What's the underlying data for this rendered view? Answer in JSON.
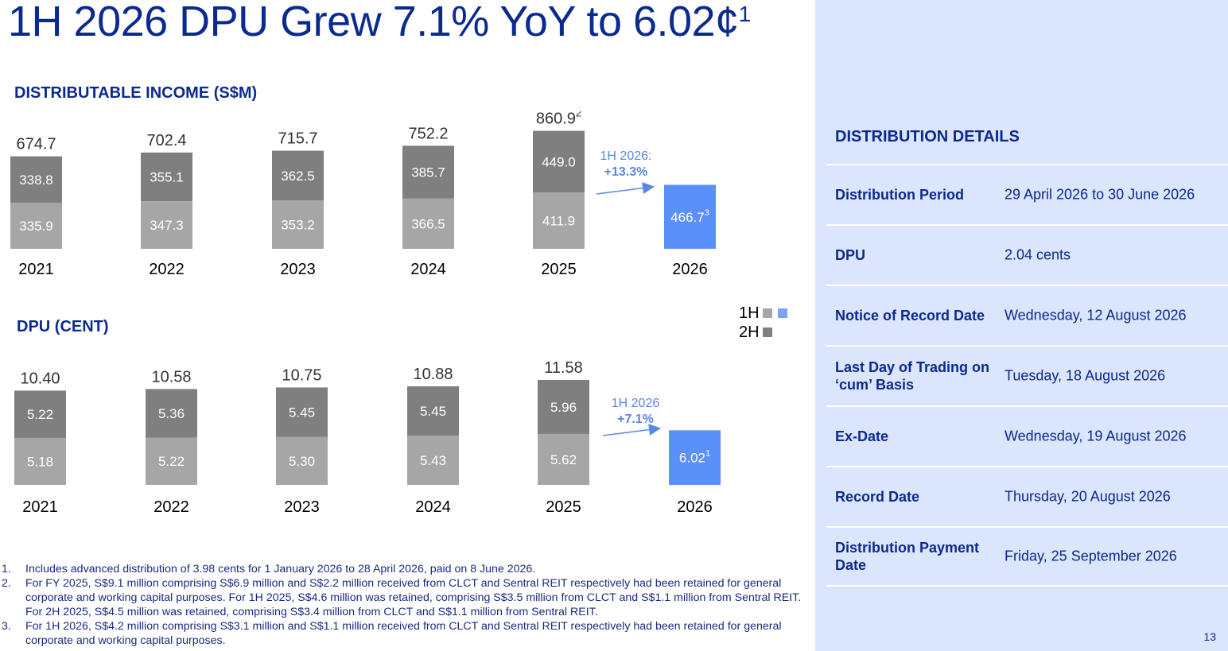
{
  "title": {
    "text": "1H 2026 DPU Grew 7.1% YoY to 6.02¢",
    "footnote_marker": "1"
  },
  "legend": {
    "first_half": "1H",
    "second_half": "2H"
  },
  "chart_data": [
    {
      "type": "bar",
      "title": "DISTRIBUTABLE INCOME (S$M)",
      "categories": [
        "2021",
        "2022",
        "2023",
        "2024",
        "2025",
        "2026"
      ],
      "series": [
        {
          "name": "1H",
          "values": [
            335.9,
            347.3,
            353.2,
            366.5,
            411.9,
            466.7
          ]
        },
        {
          "name": "2H",
          "values": [
            338.8,
            355.1,
            362.5,
            385.7,
            449.0,
            null
          ]
        }
      ],
      "value_labels_1h": [
        "335.9",
        "347.3",
        "353.2",
        "366.5",
        "411.9",
        "466.7"
      ],
      "value_labels_2h": [
        "338.8",
        "355.1",
        "362.5",
        "385.7",
        "449.0",
        ""
      ],
      "totals": [
        674.7,
        702.4,
        715.7,
        752.2,
        860.9
      ],
      "total_labels": [
        "674.7",
        "702.4",
        "715.7",
        "752.2",
        "860.9"
      ],
      "total_superscripts": [
        "",
        "",
        "",
        "",
        "2"
      ],
      "value_superscripts_1h": [
        "",
        "",
        "",
        "",
        "",
        "3"
      ],
      "annotation": {
        "label": "1H 2026:",
        "value": "+13.3%"
      },
      "colors": {
        "1H": "#a6a6a6",
        "2H": "#7f7f7f",
        "1H_2026": "#5b8ff9"
      }
    },
    {
      "type": "bar",
      "title": "DPU (CENT)",
      "categories": [
        "2021",
        "2022",
        "2023",
        "2024",
        "2025",
        "2026"
      ],
      "series": [
        {
          "name": "1H",
          "values": [
            5.18,
            5.22,
            5.3,
            5.43,
            5.62,
            6.02
          ]
        },
        {
          "name": "2H",
          "values": [
            5.22,
            5.36,
            5.45,
            5.45,
            5.96,
            null
          ]
        }
      ],
      "value_labels_1h": [
        "5.18",
        "5.22",
        "5.30",
        "5.43",
        "5.62",
        "6.02"
      ],
      "value_labels_2h": [
        "5.22",
        "5.36",
        "5.45",
        "5.45",
        "5.96",
        ""
      ],
      "totals": [
        10.4,
        10.58,
        10.75,
        10.88,
        11.58
      ],
      "total_labels": [
        "10.40",
        "10.58",
        "10.75",
        "10.88",
        "11.58"
      ],
      "total_superscripts": [
        "",
        "",
        "",
        "",
        ""
      ],
      "value_superscripts_1h": [
        "",
        "",
        "",
        "",
        "",
        "1"
      ],
      "annotation": {
        "label": "1H 2026",
        "value": "+7.1%"
      },
      "colors": {
        "1H": "#a6a6a6",
        "2H": "#7f7f7f",
        "1H_2026": "#5b8ff9"
      }
    }
  ],
  "distribution": {
    "title": "DISTRIBUTION DETAILS",
    "rows": [
      {
        "label": "Distribution Period",
        "value": "29 April 2026 to 30 June 2026"
      },
      {
        "label": "DPU",
        "value": "2.04 cents"
      },
      {
        "label": "Notice of Record Date",
        "value": "Wednesday, 12 August 2026"
      },
      {
        "label": "Last Day of Trading on ‘cum’ Basis",
        "value": "Tuesday, 18 August 2026"
      },
      {
        "label": "Ex-Date",
        "value": "Wednesday, 19 August 2026"
      },
      {
        "label": "Record Date",
        "value": "Thursday, 20 August 2026"
      },
      {
        "label": "Distribution Payment Date",
        "value": "Friday, 25 September 2026"
      }
    ]
  },
  "footnotes": [
    {
      "num": "1.",
      "text": "Includes advanced distribution of 3.98 cents for 1 January 2026 to 28 April 2026, paid on 8 June 2026."
    },
    {
      "num": "2.",
      "text": "For FY 2025, S$9.1 million comprising S$6.9 million and S$2.2 million received from CLCT and Sentral REIT respectively had been retained for general corporate and working capital purposes. For 1H 2025, S$4.6 million was retained, comprising S$3.5 million from CLCT and S$1.1 million from Sentral REIT. For 2H 2025, S$4.5 million was retained, comprising S$3.4 million from CLCT and S$1.1 million from Sentral REIT."
    },
    {
      "num": "3.",
      "text": "For 1H 2026, S$4.2 million comprising S$3.1 million and S$1.1 million received from CLCT and Sentral REIT respectively had been retained for general corporate and working capital purposes."
    }
  ],
  "page_number": "13"
}
